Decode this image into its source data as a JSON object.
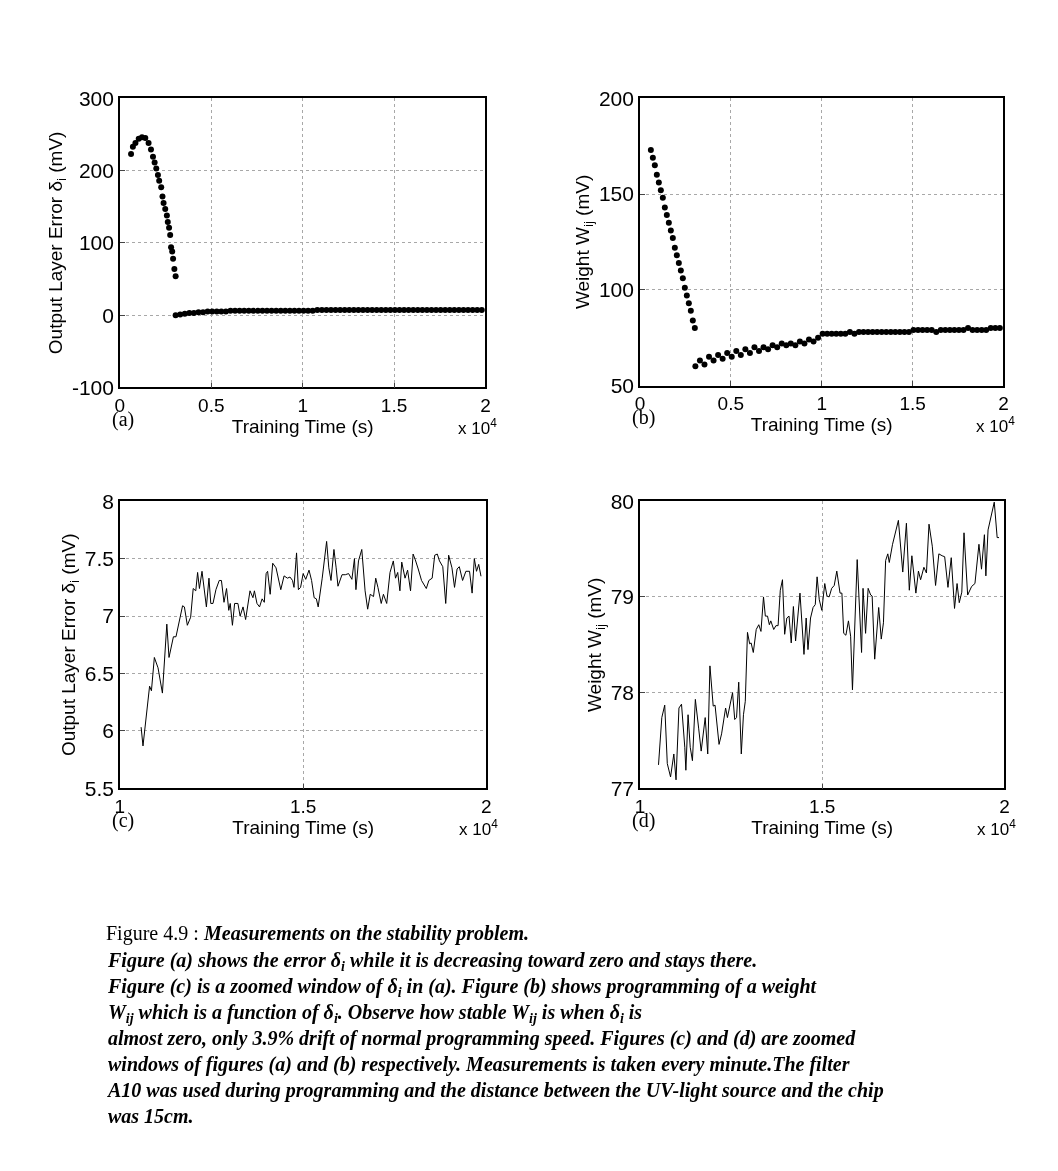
{
  "chart_data": [
    {
      "type": "scatter",
      "xlabel": "Training Time (s)",
      "ylabel": "Output Layer Error δ$_{i}$ (mV)",
      "annotations": [
        "(a)",
        "x 10$^{4}$"
      ],
      "xlim": [
        0,
        2
      ],
      "xticks": [
        0,
        0.5,
        1,
        1.5,
        2
      ],
      "ylim": [
        -100,
        300
      ],
      "yticks": [
        -100,
        0,
        100,
        200,
        300
      ],
      "grid": true,
      "marker": "circle",
      "series": [
        {
          "color": "#000000",
          "x": [
            0.061,
            0.071,
            0.085,
            0.103,
            0.121,
            0.139,
            0.157,
            0.17,
            0.181,
            0.19,
            0.199,
            0.208,
            0.215,
            0.226,
            0.233,
            0.239,
            0.248,
            0.257,
            0.262,
            0.269,
            0.275,
            0.28,
            0.286,
            0.291,
            0.298,
            0.305,
            0.305,
            0.33,
            0.355,
            0.38,
            0.405,
            0.43,
            0.455,
            0.48,
            0.505,
            0.53,
            0.555,
            0.58,
            0.605,
            0.63,
            0.655,
            0.68,
            0.705,
            0.73,
            0.755,
            0.78,
            0.805,
            0.83,
            0.855,
            0.88,
            0.905,
            0.93,
            0.955,
            0.98,
            1.005,
            1.03,
            1.055,
            1.08,
            1.105,
            1.13,
            1.155,
            1.18,
            1.205,
            1.23,
            1.255,
            1.28,
            1.305,
            1.33,
            1.355,
            1.38,
            1.405,
            1.43,
            1.455,
            1.48,
            1.505,
            1.53,
            1.555,
            1.58,
            1.605,
            1.63,
            1.655,
            1.68,
            1.705,
            1.73,
            1.755,
            1.78,
            1.805,
            1.83,
            1.855,
            1.88,
            1.905,
            1.93,
            1.955,
            1.98
          ],
          "values": [
            223,
            233,
            238,
            244,
            246,
            245,
            238,
            229,
            219,
            211,
            203,
            194,
            186,
            177,
            164,
            155,
            147,
            138,
            129,
            121,
            111,
            94,
            88,
            78,
            64,
            54,
            0,
            1,
            2,
            3,
            3,
            4,
            4,
            5,
            5,
            5,
            5,
            5,
            6,
            6,
            6,
            6,
            6,
            6,
            6,
            6,
            6,
            6,
            6,
            6,
            6,
            6,
            6,
            6,
            6,
            6,
            6,
            7,
            7,
            7,
            7,
            7,
            7,
            7,
            7,
            7,
            7,
            7,
            7,
            7,
            7,
            7,
            7,
            7,
            7,
            7,
            7,
            7,
            7,
            7,
            7,
            7,
            7,
            7,
            7,
            7,
            7,
            7,
            7,
            7,
            7,
            7,
            7,
            7
          ]
        }
      ]
    },
    {
      "type": "scatter",
      "xlabel": "Training Time (s)",
      "ylabel": "Weight W$_{ij}$ (mV)",
      "annotations": [
        "(b)",
        "x 10$^{4}$"
      ],
      "xlim": [
        0,
        2
      ],
      "xticks": [
        0,
        0.5,
        1,
        1.5,
        2
      ],
      "ylim": [
        50,
        200
      ],
      "yticks": [
        50,
        100,
        150,
        200
      ],
      "grid": true,
      "marker": "circle",
      "series": [
        {
          "color": "#000000",
          "x": [
            0.06,
            0.071,
            0.082,
            0.093,
            0.104,
            0.115,
            0.126,
            0.137,
            0.148,
            0.159,
            0.17,
            0.181,
            0.192,
            0.203,
            0.214,
            0.225,
            0.236,
            0.247,
            0.258,
            0.269,
            0.28,
            0.291,
            0.302,
            0.305,
            0.33,
            0.355,
            0.38,
            0.405,
            0.43,
            0.455,
            0.48,
            0.505,
            0.53,
            0.555,
            0.58,
            0.605,
            0.63,
            0.655,
            0.68,
            0.705,
            0.73,
            0.755,
            0.78,
            0.805,
            0.83,
            0.855,
            0.88,
            0.905,
            0.93,
            0.955,
            0.98,
            1.005,
            1.03,
            1.055,
            1.08,
            1.105,
            1.13,
            1.155,
            1.18,
            1.205,
            1.23,
            1.255,
            1.28,
            1.305,
            1.33,
            1.355,
            1.38,
            1.405,
            1.43,
            1.455,
            1.48,
            1.505,
            1.53,
            1.555,
            1.58,
            1.605,
            1.63,
            1.655,
            1.68,
            1.705,
            1.73,
            1.755,
            1.78,
            1.805,
            1.83,
            1.855,
            1.88,
            1.905,
            1.93,
            1.955,
            1.98
          ],
          "values": [
            173,
            169,
            165,
            160,
            156,
            152,
            148,
            143,
            139,
            135,
            131,
            127,
            122,
            118,
            114,
            110,
            106,
            101,
            97,
            93,
            89,
            84,
            80,
            60,
            63,
            61,
            65,
            63,
            66,
            64,
            67,
            65,
            68,
            66,
            69,
            67,
            70,
            68,
            70,
            69,
            71,
            70,
            72,
            71,
            72,
            71,
            73,
            72,
            74,
            73,
            75,
            77,
            77,
            77,
            77,
            77,
            77,
            78,
            77,
            78,
            78,
            78,
            78,
            78,
            78,
            78,
            78,
            78,
            78,
            78,
            78,
            79,
            79,
            79,
            79,
            79,
            78,
            79,
            79,
            79,
            79,
            79,
            79,
            80,
            79,
            79,
            79,
            79,
            80,
            80,
            80
          ]
        }
      ]
    },
    {
      "type": "line",
      "xlabel": "Training Time (s)",
      "ylabel": "Output Layer Error δ$_{i}$ (mV)",
      "annotations": [
        "(c)",
        "x 10$^{4}$"
      ],
      "xlim": [
        1,
        2
      ],
      "xticks": [
        1,
        1.5,
        2
      ],
      "ylim": [
        5.5,
        8
      ],
      "yticks": [
        5.5,
        6,
        6.5,
        7,
        7.5,
        8
      ],
      "grid": true,
      "line_style": "solid",
      "series": [
        {
          "color": "#000000",
          "x": [
            1.058,
            1.063,
            1.081,
            1.086,
            1.094,
            1.104,
            1.116,
            1.128,
            1.134,
            1.146,
            1.153,
            1.171,
            1.176,
            1.184,
            1.193,
            1.2,
            1.207,
            1.212,
            1.217,
            1.224,
            1.236,
            1.243,
            1.248,
            1.254,
            1.262,
            1.271,
            1.277,
            1.284,
            1.291,
            1.297,
            1.301,
            1.307,
            1.313,
            1.322,
            1.328,
            1.336,
            1.343,
            1.355,
            1.363,
            1.367,
            1.374,
            1.381,
            1.388,
            1.394,
            1.399,
            1.403,
            1.41,
            1.417,
            1.426,
            1.439,
            1.448,
            1.457,
            1.464,
            1.471,
            1.475,
            1.482,
            1.487,
            1.493,
            1.5,
            1.507,
            1.516,
            1.523,
            1.53,
            1.536,
            1.541,
            1.552,
            1.564,
            1.57,
            1.576,
            1.584,
            1.59,
            1.595,
            1.606,
            1.615,
            1.624,
            1.633,
            1.64,
            1.644,
            1.651,
            1.66,
            1.669,
            1.676,
            1.683,
            1.692,
            1.698,
            1.704,
            1.713,
            1.719,
            1.728,
            1.737,
            1.746,
            1.752,
            1.758,
            1.764,
            1.769,
            1.778,
            1.785,
            1.793,
            1.8,
            1.806,
            1.814,
            1.823,
            1.836,
            1.843,
            1.852,
            1.859,
            1.866,
            1.872,
            1.881,
            1.889,
            1.897,
            1.906,
            1.913,
            1.92,
            1.926,
            1.935,
            1.944,
            1.954,
            1.961,
            1.967,
            1.973,
            1.979,
            1.985
          ],
          "values": [
            6.03,
            5.87,
            6.39,
            6.35,
            6.64,
            6.55,
            6.33,
            6.93,
            6.64,
            6.82,
            6.82,
            7.09,
            7.08,
            6.92,
            6.99,
            7.24,
            7.22,
            7.38,
            7.24,
            7.39,
            7.08,
            7.33,
            7.11,
            7.11,
            7.23,
            7.31,
            7.31,
            7.12,
            7.24,
            7.05,
            7.11,
            6.92,
            7.11,
            7.11,
            7.0,
            7.08,
            6.97,
            7.22,
            7.16,
            7.22,
            7.11,
            7.08,
            7.15,
            7.12,
            7.37,
            7.39,
            7.19,
            7.46,
            7.42,
            7.23,
            7.35,
            7.33,
            7.34,
            7.31,
            7.25,
            7.55,
            7.23,
            7.25,
            7.37,
            7.32,
            7.4,
            7.31,
            7.16,
            7.15,
            7.08,
            7.33,
            7.65,
            7.42,
            7.31,
            7.58,
            7.42,
            7.26,
            7.36,
            7.36,
            7.37,
            7.32,
            7.5,
            7.23,
            7.48,
            7.58,
            7.22,
            7.06,
            7.19,
            7.17,
            7.33,
            7.25,
            7.11,
            7.19,
            7.11,
            7.38,
            7.48,
            7.33,
            7.38,
            7.22,
            7.47,
            7.33,
            7.4,
            7.22,
            7.54,
            7.49,
            7.41,
            7.31,
            7.24,
            7.31,
            7.33,
            7.53,
            7.54,
            7.48,
            7.43,
            7.11,
            7.53,
            7.42,
            7.25,
            7.41,
            7.43,
            7.31,
            7.39,
            7.39,
            7.2,
            7.5,
            7.39,
            7.45,
            7.35
          ]
        }
      ]
    },
    {
      "type": "line",
      "xlabel": "Training Time (s)",
      "ylabel": "Weight W$_{ij}$ (mV)",
      "annotations": [
        "(d)",
        "x 10$^{4}$",
        "Figure 4.9 :",
        "Measurements on the stability problem.",
        "Figure (a) shows the error δ$_{i}$ while it is decreasing toward zero and stays there. Figure (c) is a zoomed window of δ$_{i}$ in (a). Figure (b) shows programming of a weight W$_{ij}$ which is a function of δ$_{i}$. Observe how stable W$_{ij}$ is when δ$_{i}$ is almost zero, only 3.9% drift of normal programming speed. Figures (c) and (d) are zoomed windows of figures (a) and (b) respectively. Measurements is taken every minute.The filter A10 was used during programming and the distance between the UV-light source and the chip was 15cm."
      ],
      "xlim": [
        1,
        2
      ],
      "xticks": [
        1,
        1.5,
        2
      ],
      "ylim": [
        77,
        80
      ],
      "yticks": [
        77,
        78,
        79,
        80
      ],
      "grid": true,
      "line_style": "solid",
      "series": [
        {
          "color": "#000000",
          "x": [
            1.051,
            1.06,
            1.068,
            1.075,
            1.084,
            1.093,
            1.099,
            1.107,
            1.114,
            1.123,
            1.126,
            1.132,
            1.138,
            1.144,
            1.152,
            1.161,
            1.168,
            1.179,
            1.186,
            1.192,
            1.201,
            1.206,
            1.217,
            1.224,
            1.235,
            1.24,
            1.254,
            1.26,
            1.265,
            1.271,
            1.278,
            1.284,
            1.289,
            1.295,
            1.301,
            1.305,
            1.311,
            1.319,
            1.326,
            1.332,
            1.339,
            1.344,
            1.35,
            1.355,
            1.359,
            1.367,
            1.373,
            1.379,
            1.385,
            1.391,
            1.397,
            1.403,
            1.409,
            1.415,
            1.421,
            1.427,
            1.439,
            1.45,
            1.456,
            1.461,
            1.468,
            1.475,
            1.481,
            1.486,
            1.492,
            1.499,
            1.507,
            1.513,
            1.519,
            1.526,
            1.533,
            1.54,
            1.549,
            1.554,
            1.559,
            1.565,
            1.572,
            1.578,
            1.583,
            1.596,
            1.608,
            1.612,
            1.619,
            1.626,
            1.633,
            1.637,
            1.644,
            1.655,
            1.662,
            1.668,
            1.674,
            1.68,
            1.684,
            1.693,
            1.709,
            1.721,
            1.731,
            1.739,
            1.746,
            1.757,
            1.764,
            1.77,
            1.779,
            1.786,
            1.793,
            1.802,
            1.811,
            1.82,
            1.829,
            1.836,
            1.845,
            1.854,
            1.863,
            1.87,
            1.876,
            1.883,
            1.889,
            1.899,
            1.91,
            1.919,
            1.93,
            1.937,
            1.945,
            1.949,
            1.955,
            1.972,
            1.98,
            1.984
          ],
          "values": [
            77.25,
            77.74,
            77.87,
            77.26,
            77.12,
            77.36,
            77.09,
            77.84,
            77.88,
            77.43,
            77.19,
            77.77,
            77.43,
            77.29,
            77.93,
            77.63,
            77.39,
            77.74,
            77.36,
            78.28,
            77.86,
            77.87,
            77.46,
            77.57,
            77.84,
            77.74,
            78.0,
            77.72,
            77.74,
            78.11,
            77.36,
            77.77,
            77.91,
            78.63,
            78.51,
            78.52,
            78.42,
            78.66,
            78.71,
            78.64,
            79.0,
            78.8,
            78.8,
            78.71,
            78.75,
            78.66,
            78.7,
            78.7,
            79.07,
            79.18,
            78.61,
            78.78,
            78.8,
            78.52,
            78.9,
            78.54,
            79.04,
            78.4,
            78.78,
            78.45,
            78.78,
            78.89,
            78.92,
            79.21,
            78.97,
            78.86,
            79.14,
            79.01,
            79.0,
            79.09,
            79.12,
            79.27,
            79.04,
            79.04,
            78.62,
            78.6,
            78.75,
            78.59,
            78.03,
            79.39,
            78.42,
            79.09,
            78.62,
            79.09,
            79.02,
            79.01,
            78.35,
            78.89,
            78.56,
            78.73,
            79.38,
            79.45,
            79.36,
            79.55,
            79.8,
            79.26,
            79.77,
            79.07,
            79.43,
            79.04,
            79.27,
            79.18,
            79.31,
            79.25,
            79.76,
            79.53,
            79.12,
            79.45,
            79.43,
            79.42,
            79.1,
            79.41,
            78.88,
            79.14,
            78.94,
            79.05,
            79.67,
            79.02,
            79.11,
            79.14,
            79.55,
            79.29,
            79.65,
            79.22,
            79.7,
            79.99,
            79.62,
            79.62
          ]
        }
      ]
    }
  ]
}
